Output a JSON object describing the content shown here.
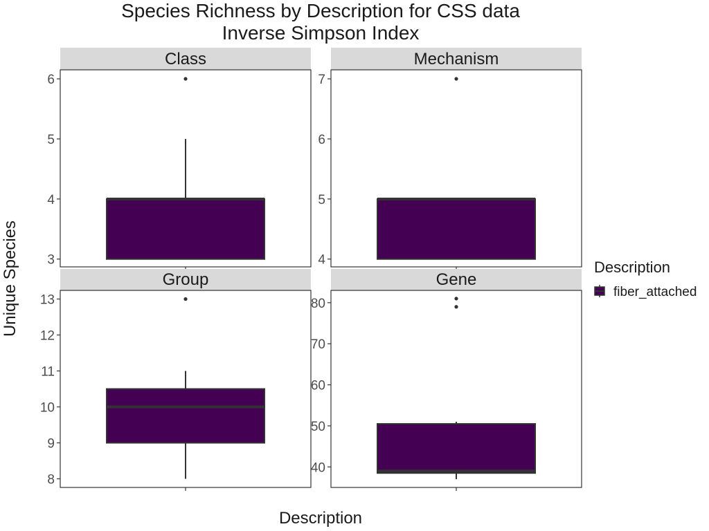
{
  "title": "Species Richness by Description for CSS data",
  "subtitle": "Inverse Simpson Index",
  "chart_data": {
    "type": "boxplot",
    "xlabel": "Description",
    "ylabel": "Unique Species",
    "legend": {
      "title": "Description",
      "placement": "right",
      "entries": [
        {
          "name": "fiber_attached",
          "color": "#440154"
        }
      ]
    },
    "grid": false,
    "panels": [
      {
        "name": "Class",
        "ylim": [
          2.87,
          6.15
        ],
        "ticks": [
          3,
          4,
          5,
          6
        ],
        "series": [
          {
            "name": "fiber_attached",
            "q1": 3,
            "median": 4,
            "q3": 4,
            "whisker_low": 3,
            "whisker_high": 5,
            "outliers": [
              6
            ]
          }
        ]
      },
      {
        "name": "Mechanism",
        "ylim": [
          3.87,
          7.15
        ],
        "ticks": [
          4,
          5,
          6,
          7
        ],
        "series": [
          {
            "name": "fiber_attached",
            "q1": 4,
            "median": 5,
            "q3": 5,
            "whisker_low": 4,
            "whisker_high": 5,
            "outliers": [
              7
            ]
          }
        ]
      },
      {
        "name": "Group",
        "ylim": [
          7.76,
          13.24
        ],
        "ticks": [
          8,
          9,
          10,
          11,
          12,
          13
        ],
        "series": [
          {
            "name": "fiber_attached",
            "q1": 9,
            "median": 10,
            "q3": 10.5,
            "whisker_low": 8,
            "whisker_high": 11,
            "outliers": [
              13
            ]
          }
        ]
      },
      {
        "name": "Gene",
        "ylim": [
          35,
          83
        ],
        "ticks": [
          40,
          50,
          60,
          70,
          80
        ],
        "series": [
          {
            "name": "fiber_attached",
            "q1": 38.5,
            "median": 39,
            "q3": 50.5,
            "whisker_low": 37,
            "whisker_high": 51,
            "outliers": [
              79,
              81
            ]
          }
        ]
      }
    ]
  },
  "colors": {
    "fill": "#440154",
    "box_line": "#333333",
    "strip_bg": "#d9d9d9",
    "panel_border": "#333333",
    "tick": "#333333"
  }
}
